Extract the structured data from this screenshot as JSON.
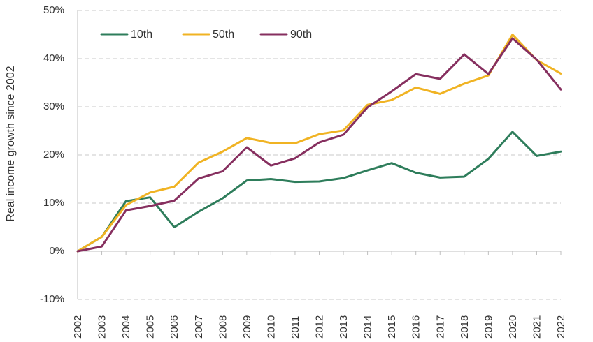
{
  "chart_data": {
    "type": "line",
    "title": "",
    "xlabel": "",
    "ylabel": "Real income growth since 2002",
    "x": [
      "2002",
      "2003",
      "2004",
      "2005",
      "2006",
      "2007",
      "2008",
      "2009",
      "2010",
      "2011",
      "2012",
      "2013",
      "2014",
      "2015",
      "2016",
      "2017",
      "2018",
      "2019",
      "2020",
      "2021",
      "2022"
    ],
    "ylim": [
      -10,
      50
    ],
    "yticks": [
      -10,
      0,
      10,
      20,
      30,
      40,
      50
    ],
    "ytick_labels": [
      "-10%",
      "0%",
      "10%",
      "20%",
      "30%",
      "40%",
      "50%"
    ],
    "grid": true,
    "legend_position": "top-left",
    "series": [
      {
        "name": "10th",
        "color": "#2e7d5b",
        "values": [
          0,
          3,
          10.4,
          11.2,
          5,
          8.2,
          11,
          14.7,
          15,
          14.4,
          14.5,
          15.2,
          16.8,
          18.3,
          16.3,
          15.3,
          15.5,
          19.2,
          24.8,
          19.8,
          20.7
        ]
      },
      {
        "name": "50th",
        "color": "#f0b323",
        "values": [
          0,
          3,
          9.6,
          12.2,
          13.4,
          18.4,
          20.7,
          23.5,
          22.5,
          22.4,
          24.3,
          25.1,
          30.4,
          31.4,
          34,
          32.7,
          34.8,
          36.5,
          45,
          39.7,
          36.9
        ]
      },
      {
        "name": "90th",
        "color": "#862f5f",
        "values": [
          0,
          1,
          8.5,
          9.4,
          10.5,
          15.1,
          16.6,
          21.6,
          17.8,
          19.3,
          22.6,
          24.2,
          29.9,
          33.2,
          36.8,
          35.8,
          40.9,
          36.8,
          44.2,
          39.8,
          33.6
        ]
      }
    ]
  }
}
